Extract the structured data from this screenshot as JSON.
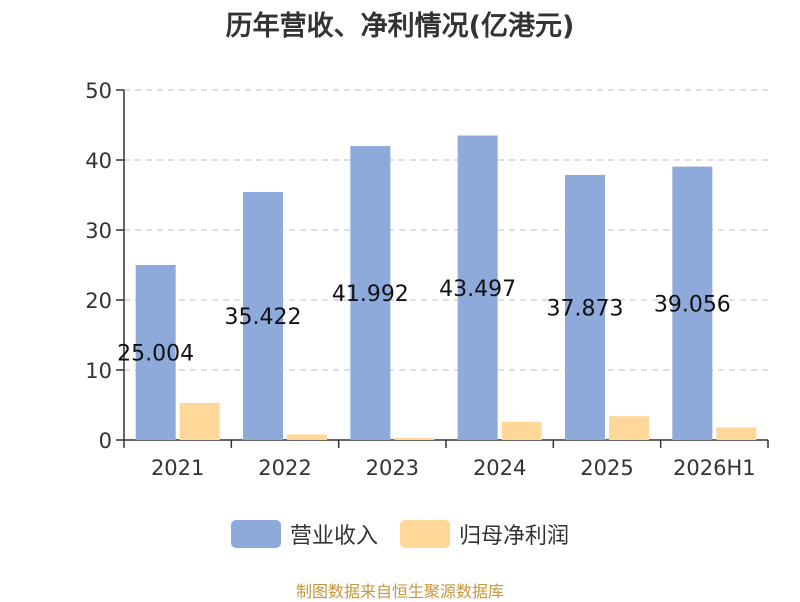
{
  "chart_data": {
    "type": "bar",
    "title": "历年营收、净利情况(亿港元)",
    "categories": [
      "2021",
      "2022",
      "2023",
      "2024",
      "2025",
      "2026H1"
    ],
    "series": [
      {
        "name": "营业收入",
        "color": "#8eaadb",
        "values": [
          25.004,
          35.422,
          41.992,
          43.497,
          37.873,
          39.056
        ],
        "data_labels": [
          "25.004",
          "35.422",
          "41.992",
          "43.497",
          "37.873",
          "39.056"
        ]
      },
      {
        "name": "归母净利润",
        "color": "#ffd899",
        "values": [
          5.3,
          0.8,
          0.3,
          2.6,
          3.4,
          1.8
        ]
      }
    ],
    "ylim": [
      0,
      50
    ],
    "yticks": [
      0,
      10,
      20,
      30,
      40,
      50
    ],
    "grid": true,
    "legend_position": "bottom"
  },
  "footer": {
    "source": "制图数据来自恒生聚源数据库"
  }
}
